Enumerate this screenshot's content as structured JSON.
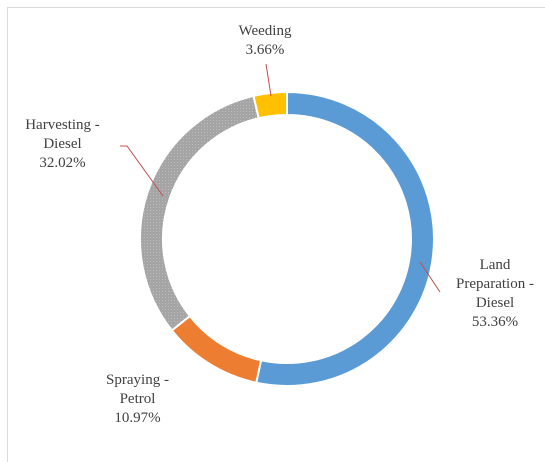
{
  "chart_data": {
    "type": "donut",
    "categories": [
      "Land Preparation - Diesel",
      "Spraying - Petrol",
      "Harvesting - Diesel",
      "Weeding"
    ],
    "values": [
      53.36,
      10.97,
      32.02,
      3.66
    ],
    "value_labels": [
      "53.36%",
      "10.97%",
      "32.02%",
      "3.66%"
    ],
    "colors": [
      "#5b9bd5",
      "#ed7d31",
      "#a5a5a5",
      "#ffc000"
    ]
  }
}
